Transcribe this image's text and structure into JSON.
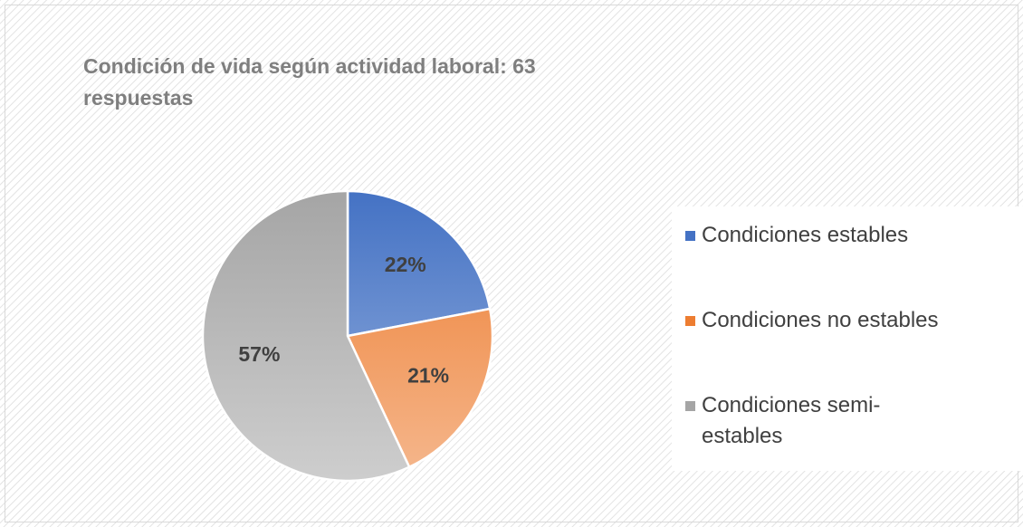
{
  "chart_data": {
    "type": "pie",
    "title": "Condición de vida según actividad laboral: 63 respuestas",
    "categories": [
      "Condiciones estables",
      "Condiciones no estables",
      "Condiciones semi-estables"
    ],
    "values": [
      22,
      21,
      57
    ],
    "value_labels": [
      "22%",
      "21%",
      "57%"
    ],
    "colors": [
      "#4472c4",
      "#ed7d31",
      "#a5a5a5"
    ],
    "legend": "right"
  }
}
